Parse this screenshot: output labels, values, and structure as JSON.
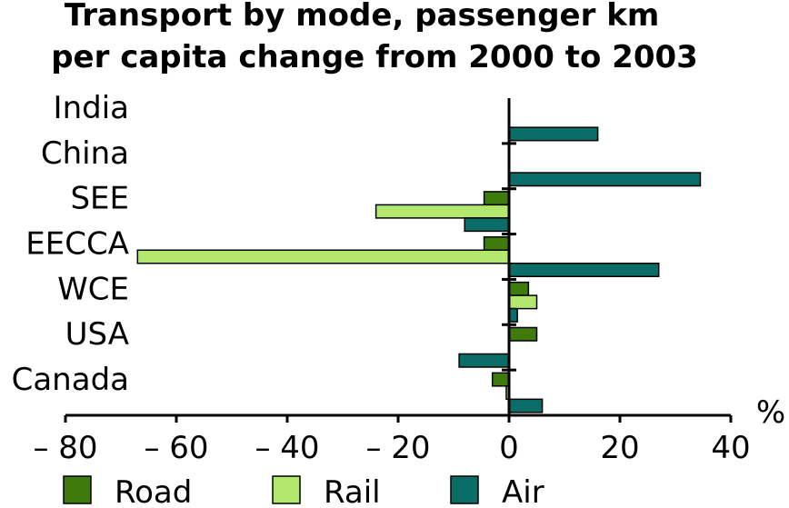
{
  "chart_data": {
    "type": "bar",
    "orientation": "horizontal",
    "title": [
      "Transport by mode, passenger km",
      "per capita change from 2000 to 2003"
    ],
    "unit_label": "%",
    "categories": [
      "India",
      "China",
      "SEE",
      "EECCA",
      "WCE",
      "USA",
      "Canada"
    ],
    "series": [
      {
        "name": "Road",
        "color": "#3f7a0d",
        "values": [
          null,
          null,
          -4.5,
          -4.5,
          3.5,
          5,
          -3
        ]
      },
      {
        "name": "Rail",
        "color": "#b3e86f",
        "values": [
          null,
          null,
          -24,
          -67,
          5,
          null,
          -0.5
        ]
      },
      {
        "name": "Air",
        "color": "#0b6d67",
        "values": [
          16,
          34.5,
          -8,
          27,
          1.5,
          -9,
          6
        ]
      }
    ],
    "xlim": [
      -80,
      40
    ],
    "xticks": [
      -80,
      -60,
      -40,
      -20,
      0,
      20,
      40
    ],
    "xtick_labels": [
      "– 80",
      "– 60",
      "– 40",
      "– 20",
      "0",
      "20",
      "40"
    ],
    "legend_position": "bottom",
    "grid": false
  }
}
